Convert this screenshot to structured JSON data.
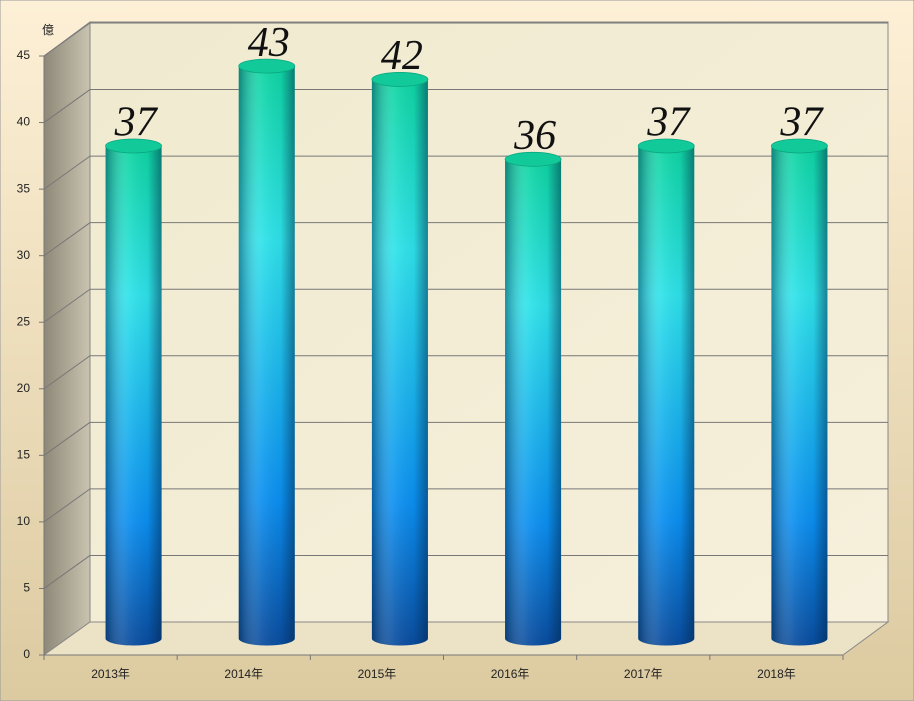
{
  "chart_data": {
    "type": "bar3d",
    "y_axis_label": "億",
    "categories": [
      "2013年",
      "2014年",
      "2015年",
      "2016年",
      "2017年",
      "2018年"
    ],
    "values": [
      37,
      43,
      42,
      36,
      37,
      37
    ],
    "ylim": [
      0,
      45
    ],
    "yticks": [
      0,
      5,
      10,
      15,
      20,
      25,
      30,
      35,
      40,
      45
    ],
    "grid": true
  }
}
